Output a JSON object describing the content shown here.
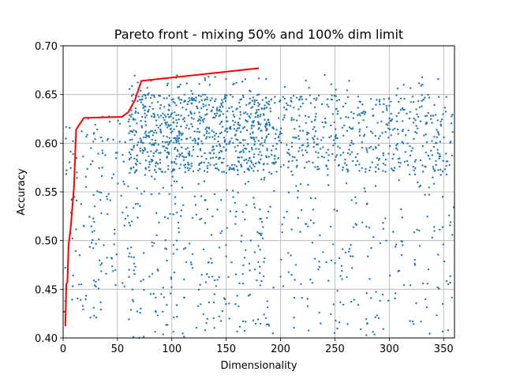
{
  "chart_data": {
    "type": "scatter",
    "title": "Pareto front - mixing 50% and 100% dim limit",
    "xlabel": "Dimensionality",
    "ylabel": "Accuracy",
    "xlim": [
      0,
      360
    ],
    "ylim": [
      0.4,
      0.7
    ],
    "x_ticks": [
      0,
      50,
      100,
      150,
      200,
      250,
      300,
      350
    ],
    "y_ticks": [
      0.4,
      0.45,
      0.5,
      0.55,
      0.6,
      0.65,
      0.7
    ],
    "x_tick_labels": [
      "0",
      "50",
      "100",
      "150",
      "200",
      "250",
      "300",
      "350"
    ],
    "y_tick_labels": [
      "0.40",
      "0.45",
      "0.50",
      "0.55",
      "0.60",
      "0.65",
      "0.70"
    ],
    "grid": true,
    "colors": {
      "scatter": "#1f77b4",
      "front": "#ff0000",
      "grid": "#b0b0b0"
    },
    "series": [
      {
        "kind": "scatter",
        "note_points_sampled": true,
        "clusters": [
          {
            "x_range": [
              1,
              20
            ],
            "y_range": [
              0.41,
              0.62
            ],
            "n": 40
          },
          {
            "x_range": [
              20,
              60
            ],
            "y_range": [
              0.42,
              0.63
            ],
            "n": 110
          },
          {
            "x_range": [
              60,
              190
            ],
            "y_range": [
              0.57,
              0.65
            ],
            "n": 650
          },
          {
            "x_range": [
              60,
              190
            ],
            "y_range": [
              0.4,
              0.67
            ],
            "n": 420
          },
          {
            "x_range": [
              190,
              360
            ],
            "y_range": [
              0.57,
              0.65
            ],
            "n": 420
          },
          {
            "x_range": [
              190,
              360
            ],
            "y_range": [
              0.4,
              0.67
            ],
            "n": 300
          }
        ]
      },
      {
        "kind": "line",
        "points": [
          [
            2,
            0.412
          ],
          [
            3,
            0.455
          ],
          [
            4,
            0.458
          ],
          [
            5,
            0.495
          ],
          [
            7,
            0.513
          ],
          [
            10,
            0.555
          ],
          [
            12,
            0.614
          ],
          [
            19,
            0.626
          ],
          [
            54,
            0.627
          ],
          [
            60,
            0.632
          ],
          [
            66,
            0.644
          ],
          [
            72,
            0.664
          ],
          [
            180,
            0.677
          ]
        ]
      }
    ]
  }
}
